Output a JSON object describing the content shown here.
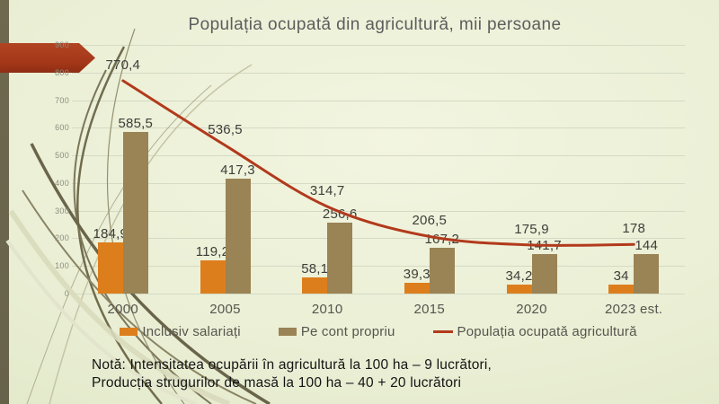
{
  "slide": {
    "title": "Populația ocupată din agricultură, mii persoane"
  },
  "note": {
    "line1": "Notă: Intensitatea ocupării în agricultură la 100 ha – 9 lucrători,",
    "line2": "Producția strugurilor de masă la 100 ha – 40 + 20 lucrători"
  },
  "chart_data": {
    "type": "bar",
    "title": "Populația ocupată din agricultură, mii persoane",
    "categories": [
      "2000",
      "2005",
      "2010",
      "2015",
      "2020",
      "2023 est."
    ],
    "series": [
      {
        "name": "Inclusiv salariați",
        "type": "bar",
        "color": "#dd7e1d",
        "values": [
          184.9,
          119.2,
          58.1,
          39.3,
          34.2,
          34
        ],
        "labels": [
          "184,9",
          "119,2",
          "58,1",
          "39,3",
          "34,2",
          "34"
        ]
      },
      {
        "name": "Pe cont propriu",
        "type": "bar",
        "color": "#9a8354",
        "values": [
          585.5,
          417.3,
          256.6,
          167.2,
          141.7,
          144
        ],
        "labels": [
          "585,5",
          "417,3",
          "256,6",
          "167,2",
          "141,7",
          "144"
        ]
      },
      {
        "name": "Populația ocupată agricultură",
        "type": "line",
        "color": "#b23a1c",
        "values": [
          770.4,
          536.5,
          314.7,
          206.5,
          175.9,
          178
        ],
        "labels": [
          "770,4",
          "536,5",
          "314,7",
          "206,5",
          "175,9",
          "178"
        ]
      }
    ],
    "ylim": [
      0,
      900
    ],
    "yticks": [
      "0",
      "100",
      "200",
      "300",
      "400",
      "500",
      "600",
      "700",
      "800",
      "900"
    ],
    "grid": true,
    "legend_position": "bottom"
  },
  "colors": {
    "background": "#e9eed3",
    "accent_arrow": "#a23618",
    "bar_orange": "#dd7e1d",
    "bar_brown": "#9a8354",
    "line_red": "#b23a1c",
    "title_gray": "#5d5d5d",
    "strip_olive": "#6b664d"
  }
}
